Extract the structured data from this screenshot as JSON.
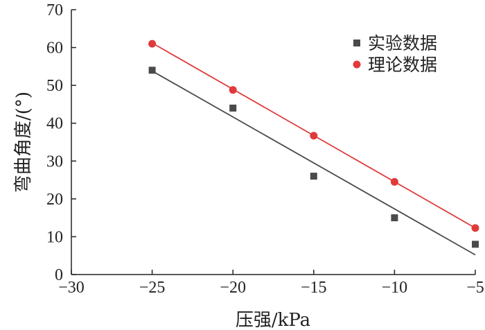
{
  "chart_data": {
    "type": "scatter",
    "xlabel": "压强/kPa",
    "ylabel": "弯曲角度/(°)",
    "xlim": [
      -30,
      -5
    ],
    "ylim": [
      0,
      70
    ],
    "xticks": [
      -30,
      -25,
      -20,
      -15,
      -10,
      -5
    ],
    "yticks": [
      0,
      10,
      20,
      30,
      40,
      50,
      60,
      70
    ],
    "xtick_labels": [
      "−30",
      "−25",
      "−20",
      "−15",
      "−10",
      "−5"
    ],
    "ytick_labels": [
      "0",
      "10",
      "20",
      "30",
      "40",
      "50",
      "60",
      "70"
    ],
    "grid": false,
    "legend_position": "top-right",
    "series": [
      {
        "name": "实验数据",
        "marker": "square",
        "color": "#4a4a4a",
        "x": [
          -25,
          -20,
          -15,
          -10,
          -5
        ],
        "y": [
          54,
          44,
          26,
          15,
          8
        ],
        "fit_line": {
          "x": [
            -25,
            -5
          ],
          "y": [
            53.8,
            5.2
          ]
        }
      },
      {
        "name": "理论数据",
        "marker": "circle",
        "color": "#e03a3a",
        "x": [
          -25,
          -20,
          -15,
          -10,
          -5
        ],
        "y": [
          61,
          48.8,
          36.7,
          24.5,
          12.3
        ],
        "fit_line": {
          "x": [
            -25,
            -5
          ],
          "y": [
            61.2,
            12.3
          ]
        }
      }
    ]
  }
}
